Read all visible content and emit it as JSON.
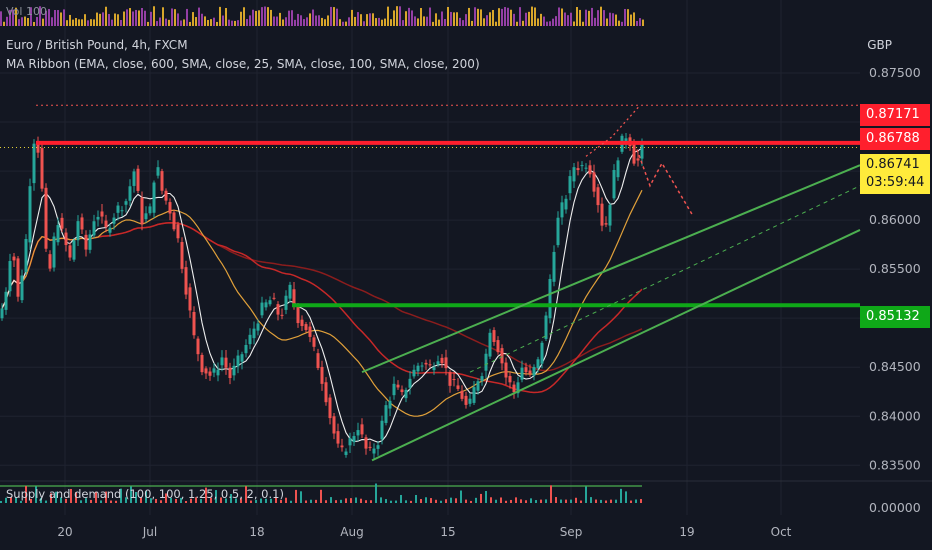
{
  "chart": {
    "title": "Euro / British Pound, 4h, FXCM",
    "indicator_ma": "MA Ribbon (EMA, close, 600, SMA, close, 25, SMA, close, 100, SMA, close, 200)",
    "indicator_sd": "Supply and demand (100, 100, 1.25, 0.5, 2, 0.1)",
    "volume_label": "Vol 100",
    "currency": "GBP",
    "sub_axis_value": "0.00000",
    "price_tags": {
      "high": "0.87171",
      "level": "0.86788",
      "last": "0.86741",
      "countdown": "03:59:44",
      "support": "0.85132"
    },
    "colors": {
      "background": "#131722",
      "up": "#26a69a",
      "down": "#ef5350",
      "resistance": "#ff1f2d",
      "support": "#0fa818",
      "channel": "#4caf50",
      "last_tag": "#ffeb3b",
      "volume_a": "#ab47bc",
      "volume_b": "#fbc02d"
    }
  },
  "chart_data": {
    "type": "candlestick",
    "symbol": "EURGBP",
    "interval": "4h",
    "y_ticks": [
      0.835,
      0.84,
      0.845,
      0.85,
      0.855,
      0.86,
      0.865,
      0.87,
      0.875
    ],
    "y_tick_labels": [
      "0.83500",
      "0.84000",
      "0.84500",
      "",
      "0.85500",
      "0.86000",
      "",
      "",
      "0.87500"
    ],
    "ylim": [
      0.8335,
      0.8802
    ],
    "x_tick_labels": [
      "20",
      "Jul",
      "18",
      "Aug",
      "15",
      "Sep",
      "19",
      "Oct"
    ],
    "xlim": [
      0,
      860
    ],
    "x_ticks": [
      65,
      150,
      257,
      352,
      448,
      571,
      687,
      781
    ],
    "path": [
      [
        0,
        0.85
      ],
      [
        6,
        0.853
      ],
      [
        12,
        0.858
      ],
      [
        18,
        0.852
      ],
      [
        24,
        0.856
      ],
      [
        28,
        0.86
      ],
      [
        32,
        0.868
      ],
      [
        36,
        0.8685
      ],
      [
        40,
        0.866
      ],
      [
        44,
        0.86
      ],
      [
        48,
        0.853
      ],
      [
        52,
        0.857
      ],
      [
        58,
        0.86
      ],
      [
        64,
        0.858
      ],
      [
        70,
        0.856
      ],
      [
        78,
        0.86
      ],
      [
        86,
        0.857
      ],
      [
        96,
        0.861
      ],
      [
        106,
        0.859
      ],
      [
        116,
        0.861
      ],
      [
        126,
        0.862
      ],
      [
        134,
        0.865
      ],
      [
        142,
        0.86
      ],
      [
        150,
        0.861
      ],
      [
        156,
        0.866
      ],
      [
        162,
        0.863
      ],
      [
        170,
        0.861
      ],
      [
        178,
        0.858
      ],
      [
        186,
        0.853
      ],
      [
        194,
        0.848
      ],
      [
        202,
        0.845
      ],
      [
        212,
        0.844
      ],
      [
        222,
        0.846
      ],
      [
        230,
        0.844
      ],
      [
        240,
        0.846
      ],
      [
        250,
        0.848
      ],
      [
        262,
        0.851
      ],
      [
        272,
        0.852
      ],
      [
        280,
        0.85
      ],
      [
        290,
        0.853
      ],
      [
        298,
        0.85
      ],
      [
        306,
        0.849
      ],
      [
        316,
        0.846
      ],
      [
        324,
        0.843
      ],
      [
        332,
        0.839
      ],
      [
        340,
        0.836
      ],
      [
        350,
        0.8375
      ],
      [
        358,
        0.839
      ],
      [
        368,
        0.836
      ],
      [
        378,
        0.8375
      ],
      [
        386,
        0.841
      ],
      [
        394,
        0.843
      ],
      [
        402,
        0.842
      ],
      [
        410,
        0.844
      ],
      [
        420,
        0.8455
      ],
      [
        430,
        0.845
      ],
      [
        440,
        0.8465
      ],
      [
        450,
        0.8435
      ],
      [
        460,
        0.8425
      ],
      [
        468,
        0.8405
      ],
      [
        476,
        0.8435
      ],
      [
        484,
        0.845
      ],
      [
        490,
        0.849
      ],
      [
        498,
        0.847
      ],
      [
        506,
        0.844
      ],
      [
        514,
        0.8425
      ],
      [
        522,
        0.845
      ],
      [
        530,
        0.844
      ],
      [
        538,
        0.8455
      ],
      [
        546,
        0.85
      ],
      [
        552,
        0.856
      ],
      [
        558,
        0.86
      ],
      [
        566,
        0.8625
      ],
      [
        574,
        0.8655
      ],
      [
        582,
        0.8655
      ],
      [
        588,
        0.866
      ],
      [
        594,
        0.8635
      ],
      [
        600,
        0.861
      ],
      [
        604,
        0.8585
      ],
      [
        610,
        0.862
      ],
      [
        616,
        0.866
      ],
      [
        622,
        0.868
      ],
      [
        628,
        0.869
      ],
      [
        632,
        0.867
      ],
      [
        636,
        0.8655
      ],
      [
        640,
        0.8665
      ],
      [
        642,
        0.8674
      ]
    ],
    "resistance_level": 0.86788,
    "support_level": 0.85132,
    "high_level": 0.87171,
    "last_price": 0.86741,
    "sub_axis_label": "0.00000"
  }
}
